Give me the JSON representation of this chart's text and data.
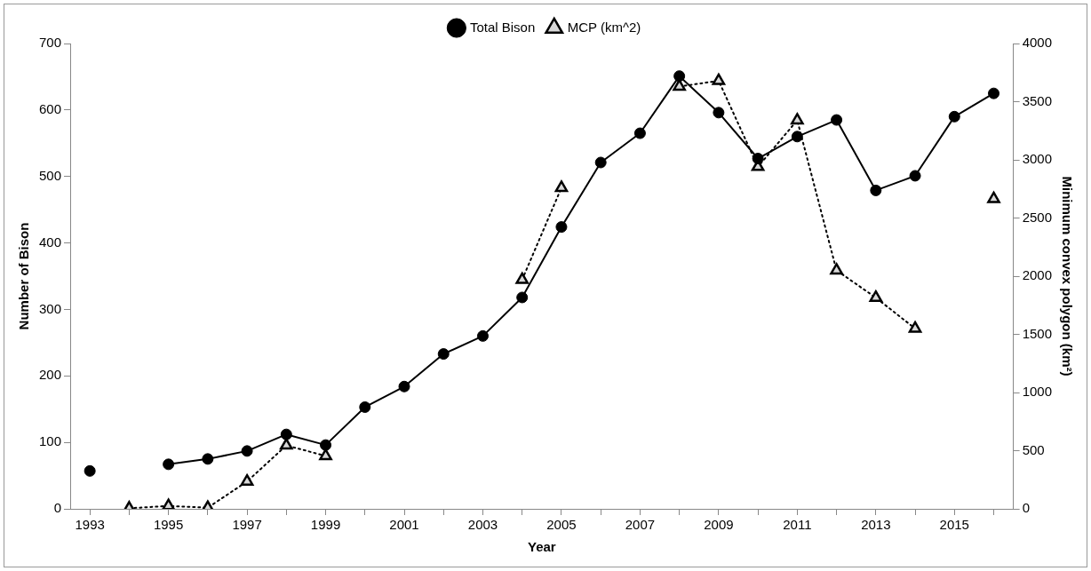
{
  "chart_data": {
    "type": "line",
    "categories": [
      "1993",
      null,
      "1995",
      null,
      "1997",
      null,
      "1999",
      null,
      "2001",
      null,
      "2003",
      null,
      "2005",
      null,
      "2007",
      null,
      "2009",
      null,
      "2011",
      null,
      "2013",
      null,
      "2015",
      null
    ],
    "series": [
      {
        "name": "Total Bison",
        "color": "#000000",
        "marker": "circle",
        "line_style": "solid",
        "values": [
          57,
          null,
          67,
          75,
          87,
          112,
          96,
          153,
          184,
          233,
          260,
          318,
          424,
          521,
          565,
          651,
          596,
          527,
          560,
          585,
          479,
          501,
          590,
          625
        ]
      },
      {
        "name": "MCP (km^2)",
        "color": "#000000",
        "marker": "triangle",
        "line_style": "dotted",
        "axis": "y2",
        "values": [
          null,
          5,
          25,
          10,
          235,
          545,
          455,
          null,
          null,
          null,
          null,
          1970,
          2760,
          null,
          null,
          3630,
          3680,
          2940,
          3340,
          2050,
          1815,
          1550,
          null,
          2665
        ]
      }
    ],
    "xlabel": "Year",
    "ylabel": "Number of Bison",
    "y2label": "Minimum convex polygon (km²)",
    "ylim": [
      0,
      700
    ],
    "yticks": [
      0,
      100,
      200,
      300,
      400,
      500,
      600,
      700
    ],
    "y2lim": [
      0,
      4000
    ],
    "y2ticks": [
      0,
      500,
      1000,
      1500,
      2000,
      2500,
      3000,
      3500,
      4000
    ],
    "grid": false,
    "legend": "top"
  }
}
